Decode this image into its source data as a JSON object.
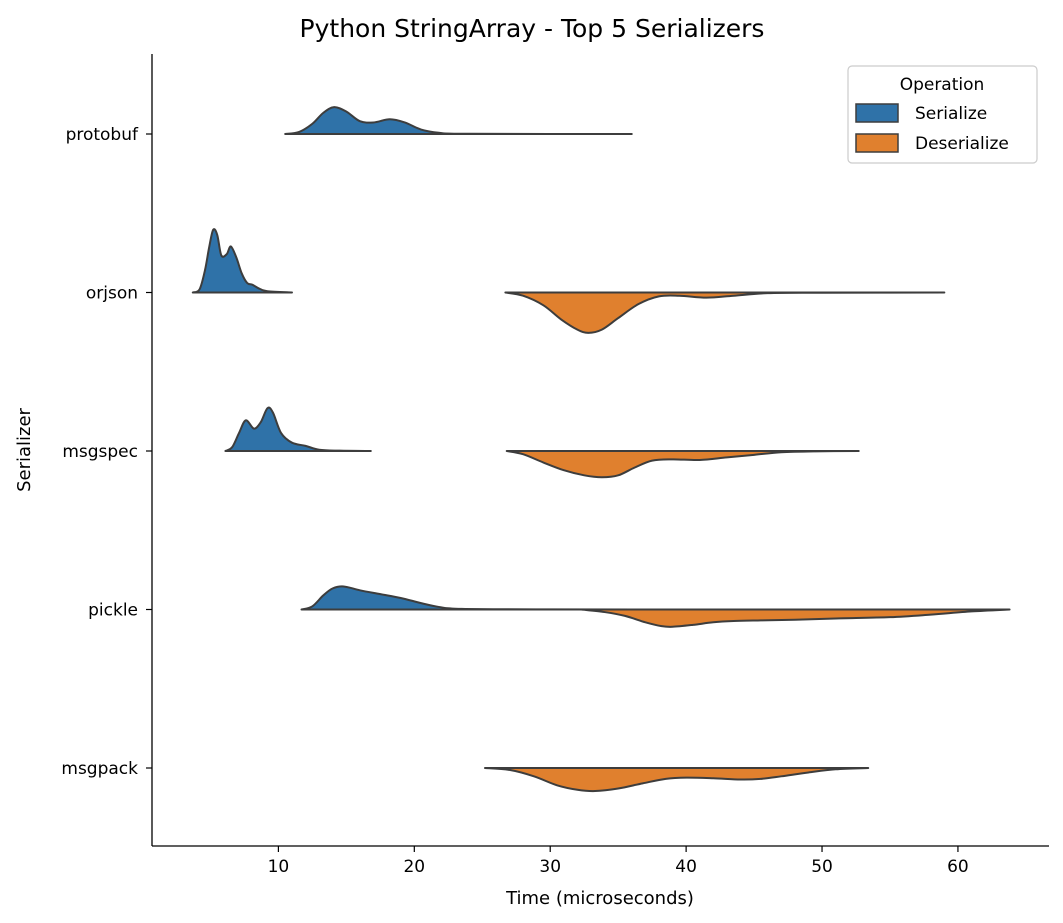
{
  "chart_data": {
    "type": "violin",
    "orientation": "horizontal",
    "split": true,
    "title": "Python StringArray - Top 5 Serializers",
    "xlabel": "Time (microseconds)",
    "ylabel": "Serializer",
    "xlim": [
      0.7,
      66.7
    ],
    "xticks": [
      10,
      20,
      30,
      40,
      50,
      60
    ],
    "categories": [
      "protobuf",
      "orjson",
      "msgspec",
      "pickle",
      "msgpack"
    ],
    "legend": {
      "title": "Operation",
      "placement": "top-right",
      "entries": [
        "Serialize",
        "Deserialize"
      ]
    },
    "series": [
      {
        "name": "Serialize",
        "side": "upper",
        "color": "#2f72a8",
        "violins": {
          "protobuf": [
            [
              10.5,
              0
            ],
            [
              11.5,
              0.03
            ],
            [
              12.5,
              0.16
            ],
            [
              13.3,
              0.33
            ],
            [
              14.1,
              0.42
            ],
            [
              15,
              0.35
            ],
            [
              16,
              0.2
            ],
            [
              17,
              0.18
            ],
            [
              18.2,
              0.23
            ],
            [
              19.3,
              0.18
            ],
            [
              20.5,
              0.07
            ],
            [
              21.8,
              0.02
            ],
            [
              24,
              0.003
            ],
            [
              36,
              0
            ]
          ],
          "orjson": [
            [
              3.7,
              0
            ],
            [
              4.2,
              0.05
            ],
            [
              4.6,
              0.35
            ],
            [
              4.9,
              0.7
            ],
            [
              5.2,
              0.98
            ],
            [
              5.5,
              0.9
            ],
            [
              5.8,
              0.58
            ],
            [
              6.2,
              0.6
            ],
            [
              6.5,
              0.72
            ],
            [
              6.9,
              0.55
            ],
            [
              7.3,
              0.3
            ],
            [
              7.7,
              0.15
            ],
            [
              8.1,
              0.12
            ],
            [
              8.6,
              0.06
            ],
            [
              9.2,
              0.02
            ],
            [
              11,
              0
            ]
          ],
          "msgspec": [
            [
              6.1,
              0
            ],
            [
              6.6,
              0.06
            ],
            [
              7.1,
              0.28
            ],
            [
              7.6,
              0.48
            ],
            [
              8.2,
              0.35
            ],
            [
              8.7,
              0.45
            ],
            [
              9.2,
              0.67
            ],
            [
              9.6,
              0.6
            ],
            [
              10.2,
              0.28
            ],
            [
              11,
              0.13
            ],
            [
              12,
              0.08
            ],
            [
              13,
              0.02
            ],
            [
              14.5,
              0.005
            ],
            [
              16.8,
              0
            ]
          ],
          "pickle": [
            [
              11.7,
              0
            ],
            [
              12.5,
              0.05
            ],
            [
              13.3,
              0.22
            ],
            [
              14,
              0.33
            ],
            [
              14.8,
              0.36
            ],
            [
              16,
              0.3
            ],
            [
              17.5,
              0.24
            ],
            [
              19,
              0.18
            ],
            [
              20.5,
              0.1
            ],
            [
              21.8,
              0.04
            ],
            [
              23.5,
              0.01
            ],
            [
              30,
              0.002
            ],
            [
              44,
              0
            ]
          ],
          "msgpack": []
        }
      },
      {
        "name": "Deserialize",
        "side": "lower",
        "color": "#e0802e",
        "violins": {
          "protobuf": [],
          "orjson": [
            [
              26.7,
              0
            ],
            [
              28,
              0.05
            ],
            [
              29.5,
              0.2
            ],
            [
              30.8,
              0.42
            ],
            [
              32,
              0.58
            ],
            [
              32.8,
              0.63
            ],
            [
              33.8,
              0.58
            ],
            [
              35,
              0.4
            ],
            [
              36.5,
              0.18
            ],
            [
              38,
              0.06
            ],
            [
              39.5,
              0.05
            ],
            [
              41.5,
              0.08
            ],
            [
              43.5,
              0.05
            ],
            [
              46,
              0.01
            ],
            [
              50,
              0.003
            ],
            [
              59,
              0
            ]
          ],
          "msgspec": [
            [
              26.8,
              0
            ],
            [
              28,
              0.05
            ],
            [
              29.5,
              0.18
            ],
            [
              31,
              0.3
            ],
            [
              32.5,
              0.38
            ],
            [
              33.8,
              0.41
            ],
            [
              35,
              0.38
            ],
            [
              36.2,
              0.26
            ],
            [
              37.5,
              0.15
            ],
            [
              39,
              0.13
            ],
            [
              41,
              0.14
            ],
            [
              43,
              0.1
            ],
            [
              45,
              0.06
            ],
            [
              47,
              0.02
            ],
            [
              49.5,
              0.005
            ],
            [
              52.7,
              0
            ]
          ],
          "pickle": [
            [
              32.3,
              0
            ],
            [
              34,
              0.04
            ],
            [
              35.5,
              0.1
            ],
            [
              37,
              0.2
            ],
            [
              38.2,
              0.26
            ],
            [
              39,
              0.27
            ],
            [
              40.5,
              0.24
            ],
            [
              42,
              0.2
            ],
            [
              43.5,
              0.18
            ],
            [
              45.5,
              0.17
            ],
            [
              48,
              0.16
            ],
            [
              51,
              0.14
            ],
            [
              55,
              0.12
            ],
            [
              58,
              0.08
            ],
            [
              61,
              0.03
            ],
            [
              63.8,
              0
            ]
          ],
          "msgpack": [
            [
              25.2,
              0
            ],
            [
              27,
              0.03
            ],
            [
              28.8,
              0.13
            ],
            [
              30.5,
              0.27
            ],
            [
              32,
              0.34
            ],
            [
              33.3,
              0.36
            ],
            [
              35,
              0.32
            ],
            [
              36.8,
              0.24
            ],
            [
              38.5,
              0.17
            ],
            [
              40,
              0.15
            ],
            [
              42,
              0.16
            ],
            [
              44,
              0.18
            ],
            [
              45.5,
              0.17
            ],
            [
              47,
              0.13
            ],
            [
              49,
              0.07
            ],
            [
              51,
              0.02
            ],
            [
              53.4,
              0
            ]
          ]
        }
      }
    ],
    "colors": {
      "outline": "#3d3d3d",
      "axis": "#000000"
    }
  }
}
